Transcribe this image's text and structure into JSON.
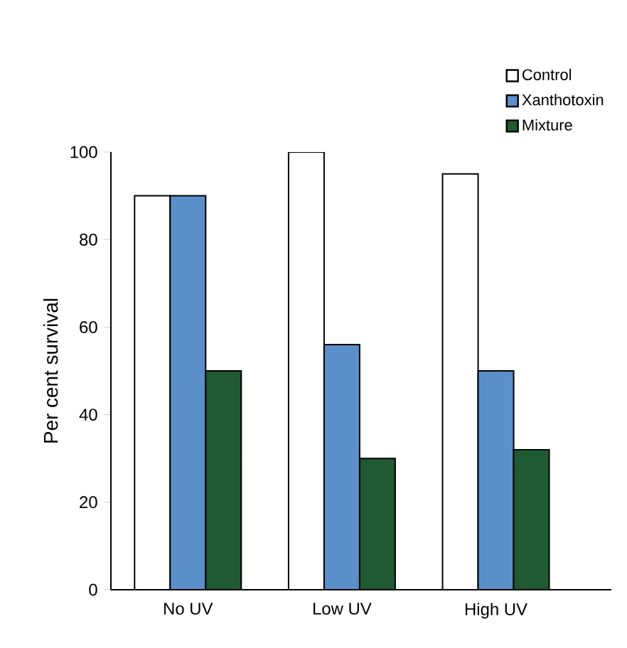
{
  "chart_data": {
    "type": "bar",
    "ylabel": "Per cent survival",
    "categories": [
      "No UV",
      "Low UV",
      "High UV"
    ],
    "series": [
      {
        "name": "Control",
        "color": "#ffffff",
        "values": [
          90,
          100,
          95
        ]
      },
      {
        "name": "Xanthotoxin",
        "color": "#5b8fc9",
        "values": [
          90,
          56,
          50
        ]
      },
      {
        "name": "Mixture",
        "color": "#1f5a32",
        "values": [
          50,
          30,
          32
        ]
      }
    ],
    "ylim": [
      0,
      100
    ],
    "yticks": [
      0,
      20,
      40,
      60,
      80,
      100
    ],
    "grid": false,
    "legend": "top right"
  }
}
